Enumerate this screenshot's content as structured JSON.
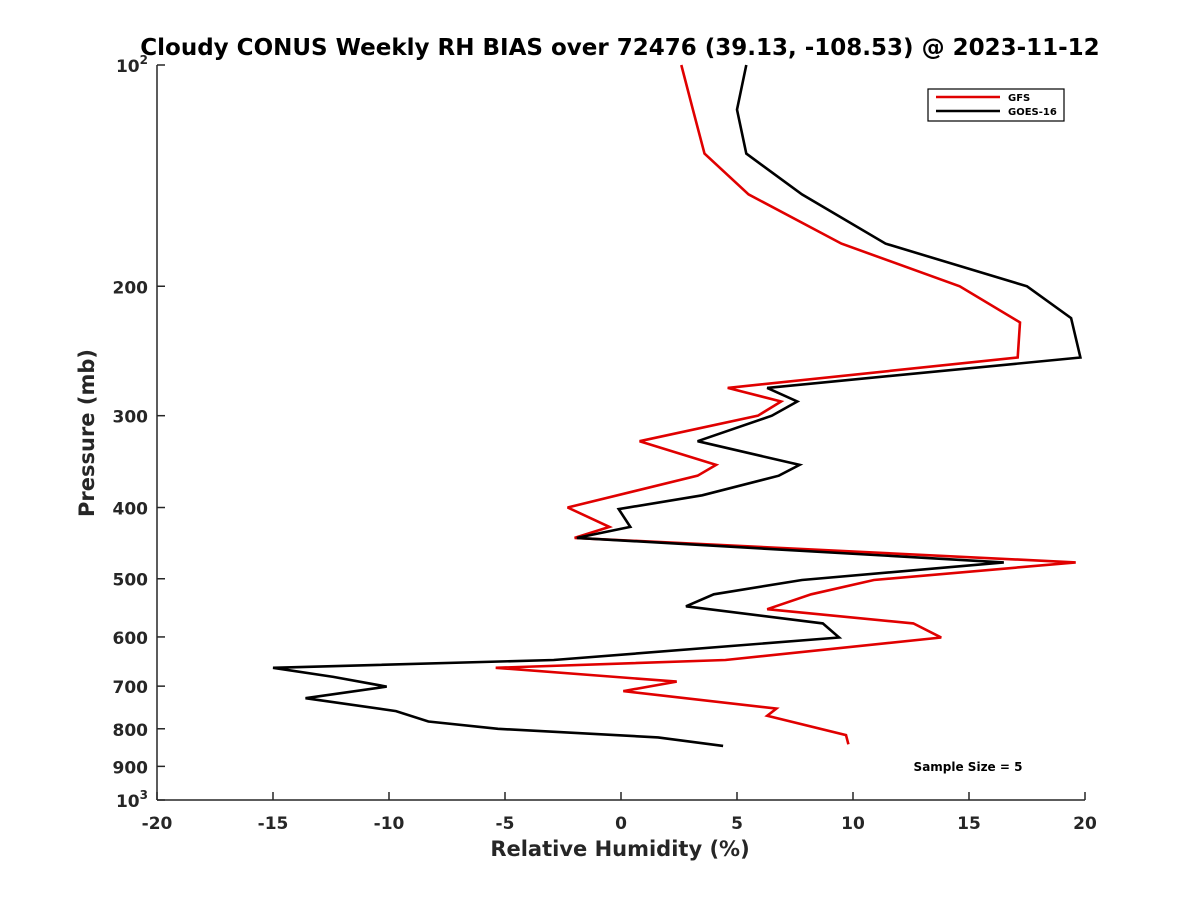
{
  "chart_data": {
    "type": "line",
    "title": "Cloudy CONUS Weekly RH BIAS over 72476 (39.13, -108.53) @ 2023-11-12",
    "xlabel": "Relative Humidity (%)",
    "ylabel": "Pressure (mb)",
    "xlim": [
      -20,
      20
    ],
    "ylim": [
      100,
      1000
    ],
    "y_scale": "log",
    "y_reversed": true,
    "grid": false,
    "legend_position": "top-right",
    "annotation": "Sample Size = 5",
    "x_ticks": [
      {
        "value": -20,
        "label": "-20"
      },
      {
        "value": -15,
        "label": "-15"
      },
      {
        "value": -10,
        "label": "-10"
      },
      {
        "value": -5,
        "label": "-5"
      },
      {
        "value": 0,
        "label": "0"
      },
      {
        "value": 5,
        "label": "5"
      },
      {
        "value": 10,
        "label": "10"
      },
      {
        "value": 15,
        "label": "15"
      },
      {
        "value": 20,
        "label": "20"
      }
    ],
    "y_ticks": [
      {
        "value": 100,
        "label": "10",
        "exp": "2"
      },
      {
        "value": 200,
        "label": "200",
        "exp": ""
      },
      {
        "value": 300,
        "label": "300",
        "exp": ""
      },
      {
        "value": 400,
        "label": "400",
        "exp": ""
      },
      {
        "value": 500,
        "label": "500",
        "exp": ""
      },
      {
        "value": 600,
        "label": "600",
        "exp": ""
      },
      {
        "value": 700,
        "label": "700",
        "exp": ""
      },
      {
        "value": 800,
        "label": "800",
        "exp": ""
      },
      {
        "value": 900,
        "label": "900",
        "exp": ""
      },
      {
        "value": 1000,
        "label": "10",
        "exp": "3"
      }
    ],
    "series": [
      {
        "name": "GFS",
        "color": "#e00000",
        "points": [
          {
            "x": 2.6,
            "y": 100
          },
          {
            "x": 3.1,
            "y": 115
          },
          {
            "x": 3.6,
            "y": 132
          },
          {
            "x": 5.5,
            "y": 150
          },
          {
            "x": 9.5,
            "y": 175
          },
          {
            "x": 14.6,
            "y": 200
          },
          {
            "x": 17.2,
            "y": 224
          },
          {
            "x": 17.1,
            "y": 250
          },
          {
            "x": 4.6,
            "y": 275
          },
          {
            "x": 6.9,
            "y": 287
          },
          {
            "x": 5.9,
            "y": 300
          },
          {
            "x": 0.8,
            "y": 325
          },
          {
            "x": 4.1,
            "y": 350
          },
          {
            "x": 3.3,
            "y": 362
          },
          {
            "x": -2.3,
            "y": 400
          },
          {
            "x": -0.5,
            "y": 425
          },
          {
            "x": -2.0,
            "y": 440
          },
          {
            "x": 19.6,
            "y": 475
          },
          {
            "x": 10.9,
            "y": 502
          },
          {
            "x": 8.2,
            "y": 525
          },
          {
            "x": 6.3,
            "y": 550
          },
          {
            "x": 12.6,
            "y": 575
          },
          {
            "x": 13.8,
            "y": 601
          },
          {
            "x": 4.5,
            "y": 645
          },
          {
            "x": -5.4,
            "y": 661
          },
          {
            "x": 2.4,
            "y": 690
          },
          {
            "x": 0.1,
            "y": 711
          },
          {
            "x": 6.7,
            "y": 751
          },
          {
            "x": 6.3,
            "y": 768
          },
          {
            "x": 9.7,
            "y": 816
          },
          {
            "x": 9.8,
            "y": 840
          }
        ]
      },
      {
        "name": "GOES-16",
        "color": "#000000",
        "points": [
          {
            "x": 5.4,
            "y": 100
          },
          {
            "x": 5.0,
            "y": 115
          },
          {
            "x": 5.4,
            "y": 132
          },
          {
            "x": 7.8,
            "y": 150
          },
          {
            "x": 11.4,
            "y": 175
          },
          {
            "x": 17.5,
            "y": 200
          },
          {
            "x": 19.4,
            "y": 221
          },
          {
            "x": 19.8,
            "y": 250
          },
          {
            "x": 6.3,
            "y": 275
          },
          {
            "x": 7.6,
            "y": 287
          },
          {
            "x": 6.5,
            "y": 300
          },
          {
            "x": 3.3,
            "y": 325
          },
          {
            "x": 7.7,
            "y": 350
          },
          {
            "x": 6.8,
            "y": 362
          },
          {
            "x": 3.5,
            "y": 385
          },
          {
            "x": -0.1,
            "y": 402
          },
          {
            "x": 0.4,
            "y": 425
          },
          {
            "x": -1.9,
            "y": 440
          },
          {
            "x": 16.5,
            "y": 475
          },
          {
            "x": 7.8,
            "y": 502
          },
          {
            "x": 4.0,
            "y": 525
          },
          {
            "x": 2.8,
            "y": 545
          },
          {
            "x": 8.7,
            "y": 575
          },
          {
            "x": 9.4,
            "y": 601
          },
          {
            "x": -2.9,
            "y": 645
          },
          {
            "x": -15.0,
            "y": 661
          },
          {
            "x": -12.4,
            "y": 680
          },
          {
            "x": -10.1,
            "y": 701
          },
          {
            "x": -13.6,
            "y": 727
          },
          {
            "x": -9.7,
            "y": 757
          },
          {
            "x": -8.3,
            "y": 782
          },
          {
            "x": -5.3,
            "y": 800
          },
          {
            "x": 1.6,
            "y": 822
          },
          {
            "x": 4.4,
            "y": 844
          }
        ]
      }
    ]
  }
}
